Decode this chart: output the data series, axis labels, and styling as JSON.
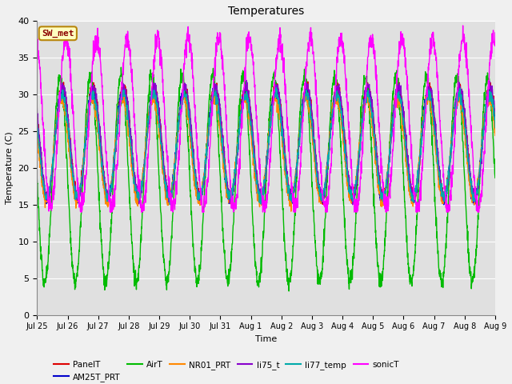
{
  "title": "Temperatures",
  "xlabel": "Time",
  "ylabel": "Temperature (C)",
  "ylim": [
    0,
    40
  ],
  "yticks": [
    0,
    5,
    10,
    15,
    20,
    25,
    30,
    35,
    40
  ],
  "plot_bg_color": "#e0e0e0",
  "fig_bg_color": "#f0f0f0",
  "annotation_text": "SW_met",
  "annotation_color": "#8b0000",
  "annotation_bg": "#ffffc0",
  "annotation_border": "#b8860b",
  "series": [
    {
      "name": "PanelT",
      "color": "#dd0000",
      "lw": 1.0,
      "base": 23.5,
      "amp": 7.5,
      "phase": 0.0,
      "noise": 0.4,
      "min_clip": 15
    },
    {
      "name": "AM25T_PRT",
      "color": "#0000cc",
      "lw": 1.0,
      "base": 23.0,
      "amp": 7.5,
      "phase": 0.02,
      "noise": 0.3,
      "min_clip": 15
    },
    {
      "name": "AirT",
      "color": "#00bb00",
      "lw": 1.0,
      "base": 18.5,
      "amp": 14.0,
      "phase": 0.08,
      "noise": 0.5,
      "min_clip": 3
    },
    {
      "name": "NR01_PRT",
      "color": "#ff8800",
      "lw": 1.0,
      "base": 22.5,
      "amp": 7.0,
      "phase": 0.03,
      "noise": 0.4,
      "min_clip": 14
    },
    {
      "name": "li75_t",
      "color": "#8800cc",
      "lw": 1.0,
      "base": 23.5,
      "amp": 7.5,
      "phase": -0.01,
      "noise": 0.4,
      "min_clip": 15
    },
    {
      "name": "li77_temp",
      "color": "#00aaaa",
      "lw": 1.0,
      "base": 23.0,
      "amp": 7.0,
      "phase": 0.01,
      "noise": 0.4,
      "min_clip": 15
    },
    {
      "name": "sonicT",
      "color": "#ff00ff",
      "lw": 1.0,
      "base": 26.0,
      "amp": 11.5,
      "phase": -0.12,
      "noise": 0.7,
      "min_clip": 14
    }
  ],
  "x_start_days": 0,
  "x_end_days": 15,
  "n_points": 2160,
  "xtick_labels": [
    "Jul 25",
    "Jul 26",
    "Jul 27",
    "Jul 28",
    "Jul 29",
    "Jul 30",
    "Jul 31",
    "Aug 1",
    "Aug 2",
    "Aug 3",
    "Aug 4",
    "Aug 5",
    "Aug 6",
    "Aug 7",
    "Aug 8",
    "Aug 9"
  ],
  "xtick_positions": [
    0,
    1,
    2,
    3,
    4,
    5,
    6,
    7,
    8,
    9,
    10,
    11,
    12,
    13,
    14,
    15
  ]
}
